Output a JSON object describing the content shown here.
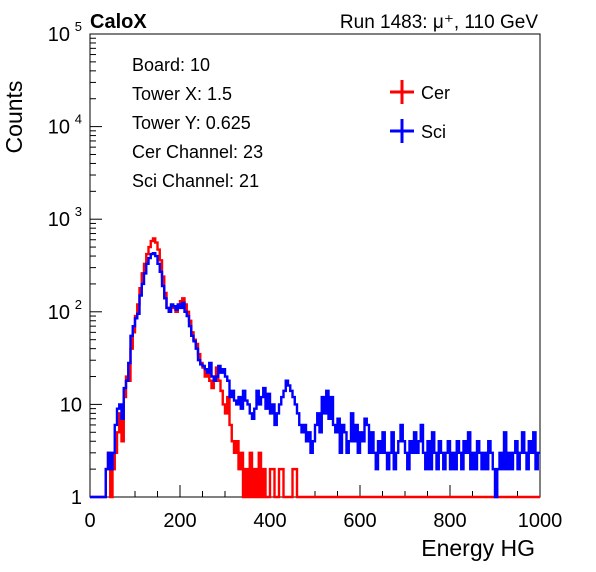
{
  "header": {
    "left_label": "CaloX",
    "right_label": "Run 1483:   μ⁺, 110 GeV"
  },
  "info_box": {
    "lines": [
      "Board: 10",
      "Tower X: 1.5",
      "Tower Y: 0.625",
      "Cer Channel: 23",
      "Sci Channel: 21"
    ]
  },
  "chart_data": {
    "type": "line",
    "style": "step-histogram",
    "xlabel": "Energy HG",
    "ylabel": "Counts",
    "xlim": [
      0,
      1000
    ],
    "ylim": [
      1,
      100000
    ],
    "y_scale": "log",
    "x_ticks": [
      0,
      200,
      400,
      600,
      800,
      1000
    ],
    "x_tick_labels": [
      "0",
      "200",
      "400",
      "600",
      "800",
      "1000"
    ],
    "y_ticks": [
      1,
      10,
      100,
      1000,
      10000,
      100000
    ],
    "y_tick_labels": {
      "1": {
        "base": "1",
        "exp": ""
      },
      "10": {
        "base": "10",
        "exp": ""
      },
      "100": {
        "base": "10",
        "exp": "2"
      },
      "1000": {
        "base": "10",
        "exp": "3"
      },
      "10000": {
        "base": "10",
        "exp": "4"
      },
      "100000": {
        "base": "10",
        "exp": "5"
      }
    },
    "legend": {
      "position": "top-right"
    },
    "series": [
      {
        "name": "Cer",
        "color": "#ff0000",
        "points": [
          [
            0,
            1
          ],
          [
            20,
            1
          ],
          [
            30,
            1
          ],
          [
            35,
            2
          ],
          [
            40,
            3
          ],
          [
            45,
            1
          ],
          [
            50,
            2
          ],
          [
            55,
            3
          ],
          [
            60,
            5
          ],
          [
            65,
            8
          ],
          [
            70,
            4
          ],
          [
            75,
            12
          ],
          [
            80,
            20
          ],
          [
            85,
            18
          ],
          [
            90,
            40
          ],
          [
            95,
            60
          ],
          [
            100,
            90
          ],
          [
            105,
            120
          ],
          [
            110,
            180
          ],
          [
            115,
            260
          ],
          [
            120,
            330
          ],
          [
            125,
            420
          ],
          [
            130,
            500
          ],
          [
            135,
            580
          ],
          [
            140,
            620
          ],
          [
            145,
            560
          ],
          [
            150,
            470
          ],
          [
            155,
            360
          ],
          [
            160,
            240
          ],
          [
            165,
            160
          ],
          [
            170,
            110
          ],
          [
            175,
            100
          ],
          [
            180,
            115
          ],
          [
            185,
            110
          ],
          [
            190,
            100
          ],
          [
            195,
            115
          ],
          [
            200,
            130
          ],
          [
            205,
            140
          ],
          [
            210,
            120
          ],
          [
            215,
            100
          ],
          [
            220,
            80
          ],
          [
            225,
            60
          ],
          [
            230,
            50
          ],
          [
            235,
            45
          ],
          [
            240,
            35
          ],
          [
            245,
            28
          ],
          [
            250,
            25
          ],
          [
            255,
            20
          ],
          [
            260,
            22
          ],
          [
            265,
            18
          ],
          [
            270,
            15
          ],
          [
            275,
            20
          ],
          [
            280,
            25
          ],
          [
            285,
            18
          ],
          [
            290,
            14
          ],
          [
            295,
            10
          ],
          [
            300,
            8
          ],
          [
            305,
            12
          ],
          [
            310,
            6
          ],
          [
            315,
            4
          ],
          [
            320,
            3
          ],
          [
            325,
            4
          ],
          [
            330,
            2
          ],
          [
            335,
            3
          ],
          [
            340,
            1
          ],
          [
            345,
            2
          ],
          [
            350,
            1
          ],
          [
            355,
            3
          ],
          [
            360,
            1
          ],
          [
            365,
            2
          ],
          [
            370,
            1
          ],
          [
            375,
            3
          ],
          [
            380,
            1
          ],
          [
            385,
            2
          ],
          [
            390,
            1
          ],
          [
            400,
            2
          ],
          [
            410,
            1
          ],
          [
            420,
            2
          ],
          [
            430,
            1
          ],
          [
            440,
            1
          ],
          [
            450,
            2
          ],
          [
            460,
            1
          ],
          [
            470,
            1
          ],
          [
            480,
            1
          ],
          [
            500,
            1
          ],
          [
            600,
            1
          ],
          [
            700,
            1
          ],
          [
            800,
            1
          ],
          [
            900,
            1
          ],
          [
            1000,
            1
          ]
        ]
      },
      {
        "name": "Sci",
        "color": "#0000ff",
        "points": [
          [
            0,
            1
          ],
          [
            20,
            1
          ],
          [
            30,
            1
          ],
          [
            35,
            2
          ],
          [
            40,
            3
          ],
          [
            45,
            2
          ],
          [
            50,
            3
          ],
          [
            55,
            6
          ],
          [
            60,
            9
          ],
          [
            65,
            10
          ],
          [
            70,
            7
          ],
          [
            75,
            15
          ],
          [
            80,
            18
          ],
          [
            85,
            28
          ],
          [
            90,
            55
          ],
          [
            95,
            70
          ],
          [
            100,
            85
          ],
          [
            105,
            95
          ],
          [
            110,
            150
          ],
          [
            115,
            200
          ],
          [
            120,
            260
          ],
          [
            125,
            330
          ],
          [
            130,
            380
          ],
          [
            135,
            420
          ],
          [
            140,
            430
          ],
          [
            145,
            400
          ],
          [
            150,
            330
          ],
          [
            155,
            270
          ],
          [
            160,
            190
          ],
          [
            165,
            140
          ],
          [
            170,
            110
          ],
          [
            175,
            100
          ],
          [
            180,
            120
          ],
          [
            185,
            115
          ],
          [
            190,
            105
          ],
          [
            195,
            120
          ],
          [
            200,
            110
          ],
          [
            205,
            125
          ],
          [
            210,
            100
          ],
          [
            215,
            90
          ],
          [
            220,
            70
          ],
          [
            225,
            55
          ],
          [
            230,
            48
          ],
          [
            235,
            40
          ],
          [
            240,
            30
          ],
          [
            245,
            27
          ],
          [
            250,
            26
          ],
          [
            255,
            24
          ],
          [
            260,
            22
          ],
          [
            265,
            28
          ],
          [
            270,
            20
          ],
          [
            275,
            18
          ],
          [
            280,
            20
          ],
          [
            285,
            26
          ],
          [
            290,
            22
          ],
          [
            295,
            24
          ],
          [
            300,
            20
          ],
          [
            305,
            18
          ],
          [
            310,
            12
          ],
          [
            315,
            14
          ],
          [
            320,
            11
          ],
          [
            325,
            10
          ],
          [
            330,
            12
          ],
          [
            335,
            9
          ],
          [
            340,
            14
          ],
          [
            345,
            11
          ],
          [
            350,
            10
          ],
          [
            355,
            8
          ],
          [
            360,
            7
          ],
          [
            365,
            9
          ],
          [
            370,
            14
          ],
          [
            375,
            10
          ],
          [
            380,
            12
          ],
          [
            385,
            15
          ],
          [
            390,
            9
          ],
          [
            395,
            13
          ],
          [
            400,
            8
          ],
          [
            405,
            10
          ],
          [
            410,
            6
          ],
          [
            415,
            8
          ],
          [
            420,
            10
          ],
          [
            425,
            12
          ],
          [
            430,
            14
          ],
          [
            435,
            18
          ],
          [
            440,
            16
          ],
          [
            445,
            14
          ],
          [
            450,
            12
          ],
          [
            455,
            10
          ],
          [
            460,
            8
          ],
          [
            465,
            6
          ],
          [
            470,
            5
          ],
          [
            475,
            6
          ],
          [
            480,
            4
          ],
          [
            485,
            5
          ],
          [
            490,
            3
          ],
          [
            495,
            4
          ],
          [
            500,
            6
          ],
          [
            505,
            8
          ],
          [
            510,
            5
          ],
          [
            515,
            12
          ],
          [
            520,
            8
          ],
          [
            525,
            14
          ],
          [
            530,
            7
          ],
          [
            535,
            12
          ],
          [
            540,
            6
          ],
          [
            545,
            5
          ],
          [
            550,
            7
          ],
          [
            555,
            3
          ],
          [
            560,
            6
          ],
          [
            565,
            5
          ],
          [
            570,
            3
          ],
          [
            575,
            4
          ],
          [
            580,
            8
          ],
          [
            585,
            4
          ],
          [
            590,
            6
          ],
          [
            595,
            3
          ],
          [
            600,
            5
          ],
          [
            605,
            4
          ],
          [
            610,
            7
          ],
          [
            615,
            6
          ],
          [
            620,
            3
          ],
          [
            625,
            5
          ],
          [
            630,
            3
          ],
          [
            635,
            2
          ],
          [
            640,
            4
          ],
          [
            645,
            3
          ],
          [
            650,
            5
          ],
          [
            655,
            3
          ],
          [
            660,
            2
          ],
          [
            665,
            3
          ],
          [
            670,
            5
          ],
          [
            675,
            2
          ],
          [
            680,
            3
          ],
          [
            685,
            4
          ],
          [
            690,
            6
          ],
          [
            695,
            4
          ],
          [
            700,
            3
          ],
          [
            705,
            2
          ],
          [
            710,
            4
          ],
          [
            715,
            3
          ],
          [
            720,
            5
          ],
          [
            725,
            3
          ],
          [
            730,
            4
          ],
          [
            735,
            6
          ],
          [
            740,
            3
          ],
          [
            745,
            2
          ],
          [
            750,
            4
          ],
          [
            755,
            2
          ],
          [
            760,
            5
          ],
          [
            765,
            3
          ],
          [
            770,
            2
          ],
          [
            775,
            4
          ],
          [
            780,
            3
          ],
          [
            785,
            2
          ],
          [
            790,
            3
          ],
          [
            795,
            4
          ],
          [
            800,
            2
          ],
          [
            805,
            3
          ],
          [
            810,
            2
          ],
          [
            815,
            4
          ],
          [
            820,
            3
          ],
          [
            825,
            2
          ],
          [
            830,
            4
          ],
          [
            835,
            3
          ],
          [
            840,
            5
          ],
          [
            845,
            2
          ],
          [
            850,
            3
          ],
          [
            855,
            2
          ],
          [
            860,
            4
          ],
          [
            865,
            3
          ],
          [
            870,
            2
          ],
          [
            875,
            3
          ],
          [
            880,
            2
          ],
          [
            885,
            4
          ],
          [
            890,
            3
          ],
          [
            895,
            2
          ],
          [
            900,
            1
          ],
          [
            905,
            2
          ],
          [
            910,
            3
          ],
          [
            915,
            2
          ],
          [
            920,
            5
          ],
          [
            925,
            2
          ],
          [
            930,
            3
          ],
          [
            935,
            2
          ],
          [
            940,
            3
          ],
          [
            945,
            4
          ],
          [
            950,
            2
          ],
          [
            955,
            3
          ],
          [
            960,
            5
          ],
          [
            965,
            3
          ],
          [
            970,
            2
          ],
          [
            975,
            4
          ],
          [
            980,
            3
          ],
          [
            985,
            5
          ],
          [
            990,
            2
          ],
          [
            995,
            3
          ],
          [
            1000,
            3
          ]
        ]
      }
    ]
  }
}
